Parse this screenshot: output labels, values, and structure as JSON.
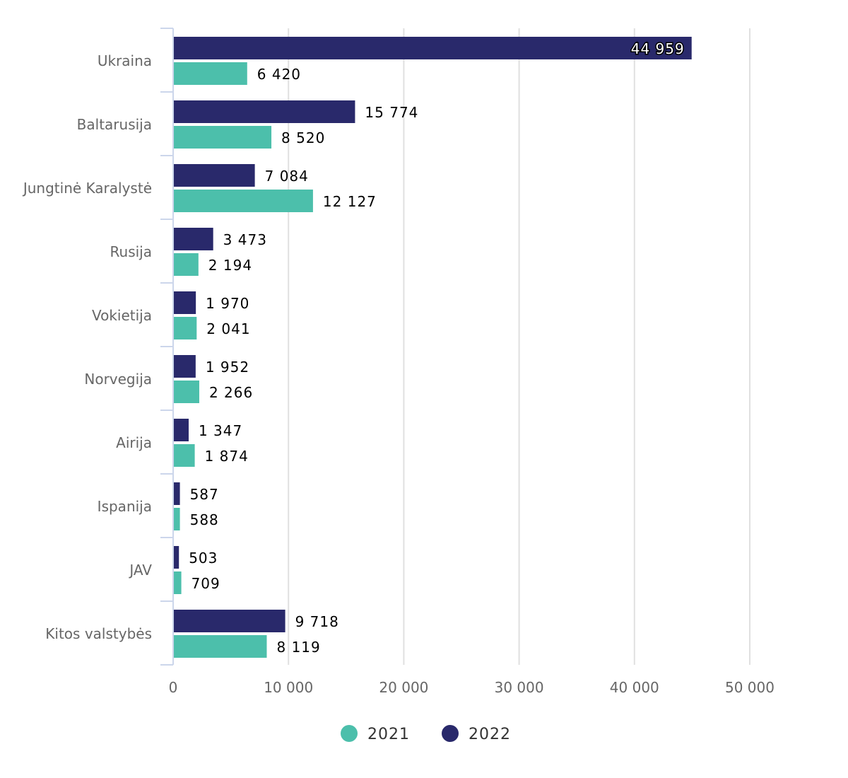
{
  "chart_data": {
    "type": "bar",
    "orientation": "horizontal",
    "title": "",
    "xlabel": "",
    "ylabel": "",
    "categories": [
      "Ukraina",
      "Baltarusija",
      "Jungtinė Karalystė",
      "Rusija",
      "Vokietija",
      "Norvegija",
      "Airija",
      "Ispanija",
      "JAV",
      "Kitos valstybės"
    ],
    "series": [
      {
        "name": "2022",
        "color": "#29296b",
        "values": [
          44959,
          15774,
          7084,
          3473,
          1970,
          1952,
          1347,
          587,
          503,
          9718
        ],
        "labels": [
          "44 959",
          "15 774",
          "7 084",
          "3 473",
          "1 970",
          "1 952",
          "1 347",
          "587",
          "503",
          "9 718"
        ]
      },
      {
        "name": "2021",
        "color": "#4cbfab",
        "values": [
          6420,
          8520,
          12127,
          2194,
          2041,
          2266,
          1874,
          588,
          709,
          8119
        ],
        "labels": [
          "6 420",
          "8 520",
          "12 127",
          "2 194",
          "2 041",
          "2 266",
          "1 874",
          "588",
          "709",
          "8 119"
        ]
      }
    ],
    "xlim": [
      0,
      50000
    ],
    "xticks": [
      0,
      10000,
      20000,
      30000,
      40000,
      50000
    ],
    "xtick_labels": [
      "0",
      "10 000",
      "20 000",
      "30 000",
      "40 000",
      "50 000"
    ],
    "grid": true,
    "legend": {
      "placement": "bottom-center",
      "entries": [
        "2021",
        "2022"
      ]
    }
  }
}
